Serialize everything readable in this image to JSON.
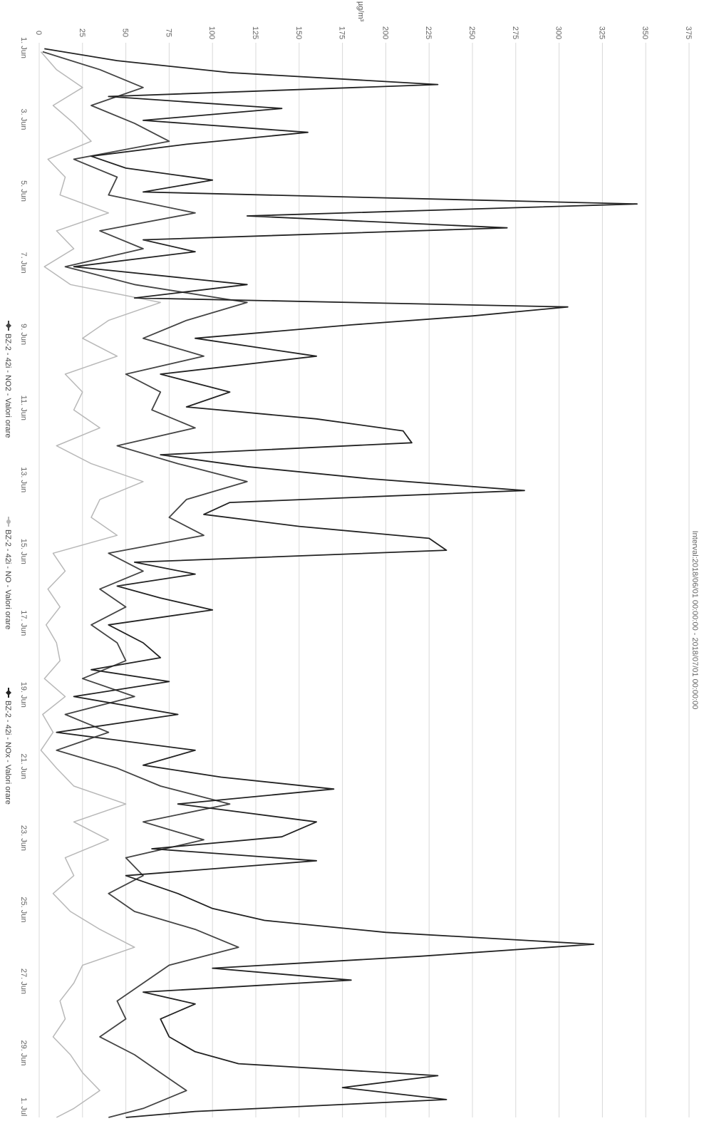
{
  "chart_data": {
    "type": "line",
    "title": "",
    "subtitle": "Interval:2018/06/01 00:00:00 - 2018/07/01 00:00:00",
    "ylabel": "µg/m³",
    "xlabel": "",
    "ylim": [
      0,
      375
    ],
    "y_ticks": [
      0,
      25,
      50,
      75,
      100,
      125,
      150,
      175,
      200,
      225,
      250,
      275,
      300,
      325,
      350,
      375
    ],
    "x_range": [
      "2018-06-01",
      "2018-07-01"
    ],
    "x_tick_labels": [
      "1. Jun",
      "3. Jun",
      "5. Jun",
      "7. Jun",
      "9. Jun",
      "11. Jun",
      "13. Jun",
      "15. Jun",
      "17. Jun",
      "19. Jun",
      "21. Jun",
      "23. Jun",
      "25. Jun",
      "27. Jun",
      "29. Jun",
      "1. Jul"
    ],
    "grid": true,
    "legend_position": "bottom",
    "orientation": "rotated-90",
    "series": [
      {
        "name": "BZ-2 - 42i - NO2 - Valori orare",
        "color": "#444444",
        "marker": "diamond",
        "points": [
          [
            "06-01",
            2
          ],
          [
            "06-01",
            35
          ],
          [
            "06-02",
            60
          ],
          [
            "06-02",
            30
          ],
          [
            "06-03",
            55
          ],
          [
            "06-03",
            75
          ],
          [
            "06-04",
            20
          ],
          [
            "06-04",
            45
          ],
          [
            "06-05",
            40
          ],
          [
            "06-05",
            90
          ],
          [
            "06-06",
            35
          ],
          [
            "06-06",
            60
          ],
          [
            "06-07",
            15
          ],
          [
            "06-07",
            55
          ],
          [
            "06-08",
            120
          ],
          [
            "06-08",
            85
          ],
          [
            "06-09",
            60
          ],
          [
            "06-09",
            95
          ],
          [
            "06-10",
            50
          ],
          [
            "06-10",
            70
          ],
          [
            "06-11",
            65
          ],
          [
            "06-11",
            90
          ],
          [
            "06-12",
            45
          ],
          [
            "06-12",
            80
          ],
          [
            "06-13",
            120
          ],
          [
            "06-13",
            85
          ],
          [
            "06-14",
            75
          ],
          [
            "06-14",
            95
          ],
          [
            "06-15",
            40
          ],
          [
            "06-15",
            60
          ],
          [
            "06-16",
            35
          ],
          [
            "06-16",
            50
          ],
          [
            "06-17",
            30
          ],
          [
            "06-17",
            45
          ],
          [
            "06-18",
            50
          ],
          [
            "06-18",
            25
          ],
          [
            "06-19",
            55
          ],
          [
            "06-19",
            15
          ],
          [
            "06-20",
            40
          ],
          [
            "06-20",
            10
          ],
          [
            "06-21",
            45
          ],
          [
            "06-21",
            70
          ],
          [
            "06-22",
            110
          ],
          [
            "06-22",
            60
          ],
          [
            "06-23",
            95
          ],
          [
            "06-23",
            50
          ],
          [
            "06-24",
            60
          ],
          [
            "06-24",
            40
          ],
          [
            "06-25",
            55
          ],
          [
            "06-25",
            90
          ],
          [
            "06-26",
            115
          ],
          [
            "06-26",
            75
          ],
          [
            "06-27",
            60
          ],
          [
            "06-27",
            45
          ],
          [
            "06-28",
            50
          ],
          [
            "06-28",
            35
          ],
          [
            "06-29",
            55
          ],
          [
            "06-29",
            70
          ],
          [
            "06-30",
            85
          ],
          [
            "06-30",
            60
          ],
          [
            "07-01",
            40
          ]
        ]
      },
      {
        "name": "BZ-2 - 42i - NO - Valori orare",
        "color": "#b8b8b8",
        "marker": "circle",
        "points": [
          [
            "06-01",
            1
          ],
          [
            "06-01",
            10
          ],
          [
            "06-02",
            25
          ],
          [
            "06-02",
            8
          ],
          [
            "06-03",
            20
          ],
          [
            "06-03",
            30
          ],
          [
            "06-04",
            5
          ],
          [
            "06-04",
            15
          ],
          [
            "06-05",
            12
          ],
          [
            "06-05",
            40
          ],
          [
            "06-06",
            10
          ],
          [
            "06-06",
            20
          ],
          [
            "06-07",
            3
          ],
          [
            "06-07",
            18
          ],
          [
            "06-08",
            70
          ],
          [
            "06-08",
            40
          ],
          [
            "06-09",
            25
          ],
          [
            "06-09",
            45
          ],
          [
            "06-10",
            15
          ],
          [
            "06-10",
            25
          ],
          [
            "06-11",
            20
          ],
          [
            "06-11",
            35
          ],
          [
            "06-12",
            10
          ],
          [
            "06-12",
            30
          ],
          [
            "06-13",
            60
          ],
          [
            "06-13",
            35
          ],
          [
            "06-14",
            30
          ],
          [
            "06-14",
            45
          ],
          [
            "06-15",
            8
          ],
          [
            "06-15",
            15
          ],
          [
            "06-16",
            5
          ],
          [
            "06-16",
            12
          ],
          [
            "06-17",
            4
          ],
          [
            "06-17",
            10
          ],
          [
            "06-18",
            12
          ],
          [
            "06-18",
            3
          ],
          [
            "06-19",
            15
          ],
          [
            "06-19",
            2
          ],
          [
            "06-20",
            8
          ],
          [
            "06-20",
            1
          ],
          [
            "06-21",
            10
          ],
          [
            "06-21",
            20
          ],
          [
            "06-22",
            50
          ],
          [
            "06-22",
            20
          ],
          [
            "06-23",
            40
          ],
          [
            "06-23",
            15
          ],
          [
            "06-24",
            20
          ],
          [
            "06-24",
            8
          ],
          [
            "06-25",
            18
          ],
          [
            "06-25",
            35
          ],
          [
            "06-26",
            55
          ],
          [
            "06-26",
            25
          ],
          [
            "06-27",
            20
          ],
          [
            "06-27",
            12
          ],
          [
            "06-28",
            15
          ],
          [
            "06-28",
            8
          ],
          [
            "06-29",
            18
          ],
          [
            "06-29",
            25
          ],
          [
            "06-30",
            35
          ],
          [
            "06-30",
            20
          ],
          [
            "07-01",
            10
          ]
        ]
      },
      {
        "name": "BZ-2 - 42i - NOx - Valori orare",
        "color": "#222222",
        "marker": "diamond",
        "points": [
          [
            "06-01",
            3
          ],
          [
            "06-01",
            45
          ],
          [
            "06-01",
            110
          ],
          [
            "06-02",
            230
          ],
          [
            "06-02",
            40
          ],
          [
            "06-02",
            140
          ],
          [
            "06-03",
            60
          ],
          [
            "06-03",
            155
          ],
          [
            "06-03",
            85
          ],
          [
            "06-04",
            30
          ],
          [
            "06-04",
            50
          ],
          [
            "06-04",
            100
          ],
          [
            "06-05",
            60
          ],
          [
            "06-05",
            345
          ],
          [
            "06-05",
            120
          ],
          [
            "06-06",
            270
          ],
          [
            "06-06",
            60
          ],
          [
            "06-06",
            90
          ],
          [
            "06-07",
            20
          ],
          [
            "06-07",
            120
          ],
          [
            "06-08",
            55
          ],
          [
            "06-08",
            305
          ],
          [
            "06-08",
            250
          ],
          [
            "06-08",
            180
          ],
          [
            "06-09",
            90
          ],
          [
            "06-09",
            160
          ],
          [
            "06-10",
            70
          ],
          [
            "06-10",
            110
          ],
          [
            "06-11",
            85
          ],
          [
            "06-11",
            160
          ],
          [
            "06-11",
            210
          ],
          [
            "06-12",
            215
          ],
          [
            "06-12",
            70
          ],
          [
            "06-12",
            120
          ],
          [
            "06-13",
            190
          ],
          [
            "06-13",
            280
          ],
          [
            "06-13",
            110
          ],
          [
            "06-14",
            95
          ],
          [
            "06-14",
            150
          ],
          [
            "06-14",
            225
          ],
          [
            "06-15",
            235
          ],
          [
            "06-15",
            55
          ],
          [
            "06-15",
            90
          ],
          [
            "06-16",
            45
          ],
          [
            "06-16",
            70
          ],
          [
            "06-16",
            100
          ],
          [
            "06-17",
            40
          ],
          [
            "06-17",
            60
          ],
          [
            "06-18",
            70
          ],
          [
            "06-18",
            30
          ],
          [
            "06-18",
            75
          ],
          [
            "06-19",
            20
          ],
          [
            "06-19",
            80
          ],
          [
            "06-20",
            10
          ],
          [
            "06-20",
            90
          ],
          [
            "06-21",
            60
          ],
          [
            "06-21",
            105
          ],
          [
            "06-21",
            170
          ],
          [
            "06-22",
            80
          ],
          [
            "06-22",
            160
          ],
          [
            "06-23",
            140
          ],
          [
            "06-23",
            65
          ],
          [
            "06-23",
            160
          ],
          [
            "06-24",
            50
          ],
          [
            "06-24",
            80
          ],
          [
            "06-25",
            100
          ],
          [
            "06-25",
            130
          ],
          [
            "06-25",
            200
          ],
          [
            "06-26",
            320
          ],
          [
            "06-26",
            220
          ],
          [
            "06-26",
            100
          ],
          [
            "06-27",
            180
          ],
          [
            "06-27",
            60
          ],
          [
            "06-27",
            90
          ],
          [
            "06-28",
            70
          ],
          [
            "06-28",
            75
          ],
          [
            "06-29",
            90
          ],
          [
            "06-29",
            115
          ],
          [
            "06-29",
            230
          ],
          [
            "06-30",
            175
          ],
          [
            "06-30",
            235
          ],
          [
            "06-30",
            90
          ],
          [
            "07-01",
            50
          ]
        ]
      }
    ]
  }
}
